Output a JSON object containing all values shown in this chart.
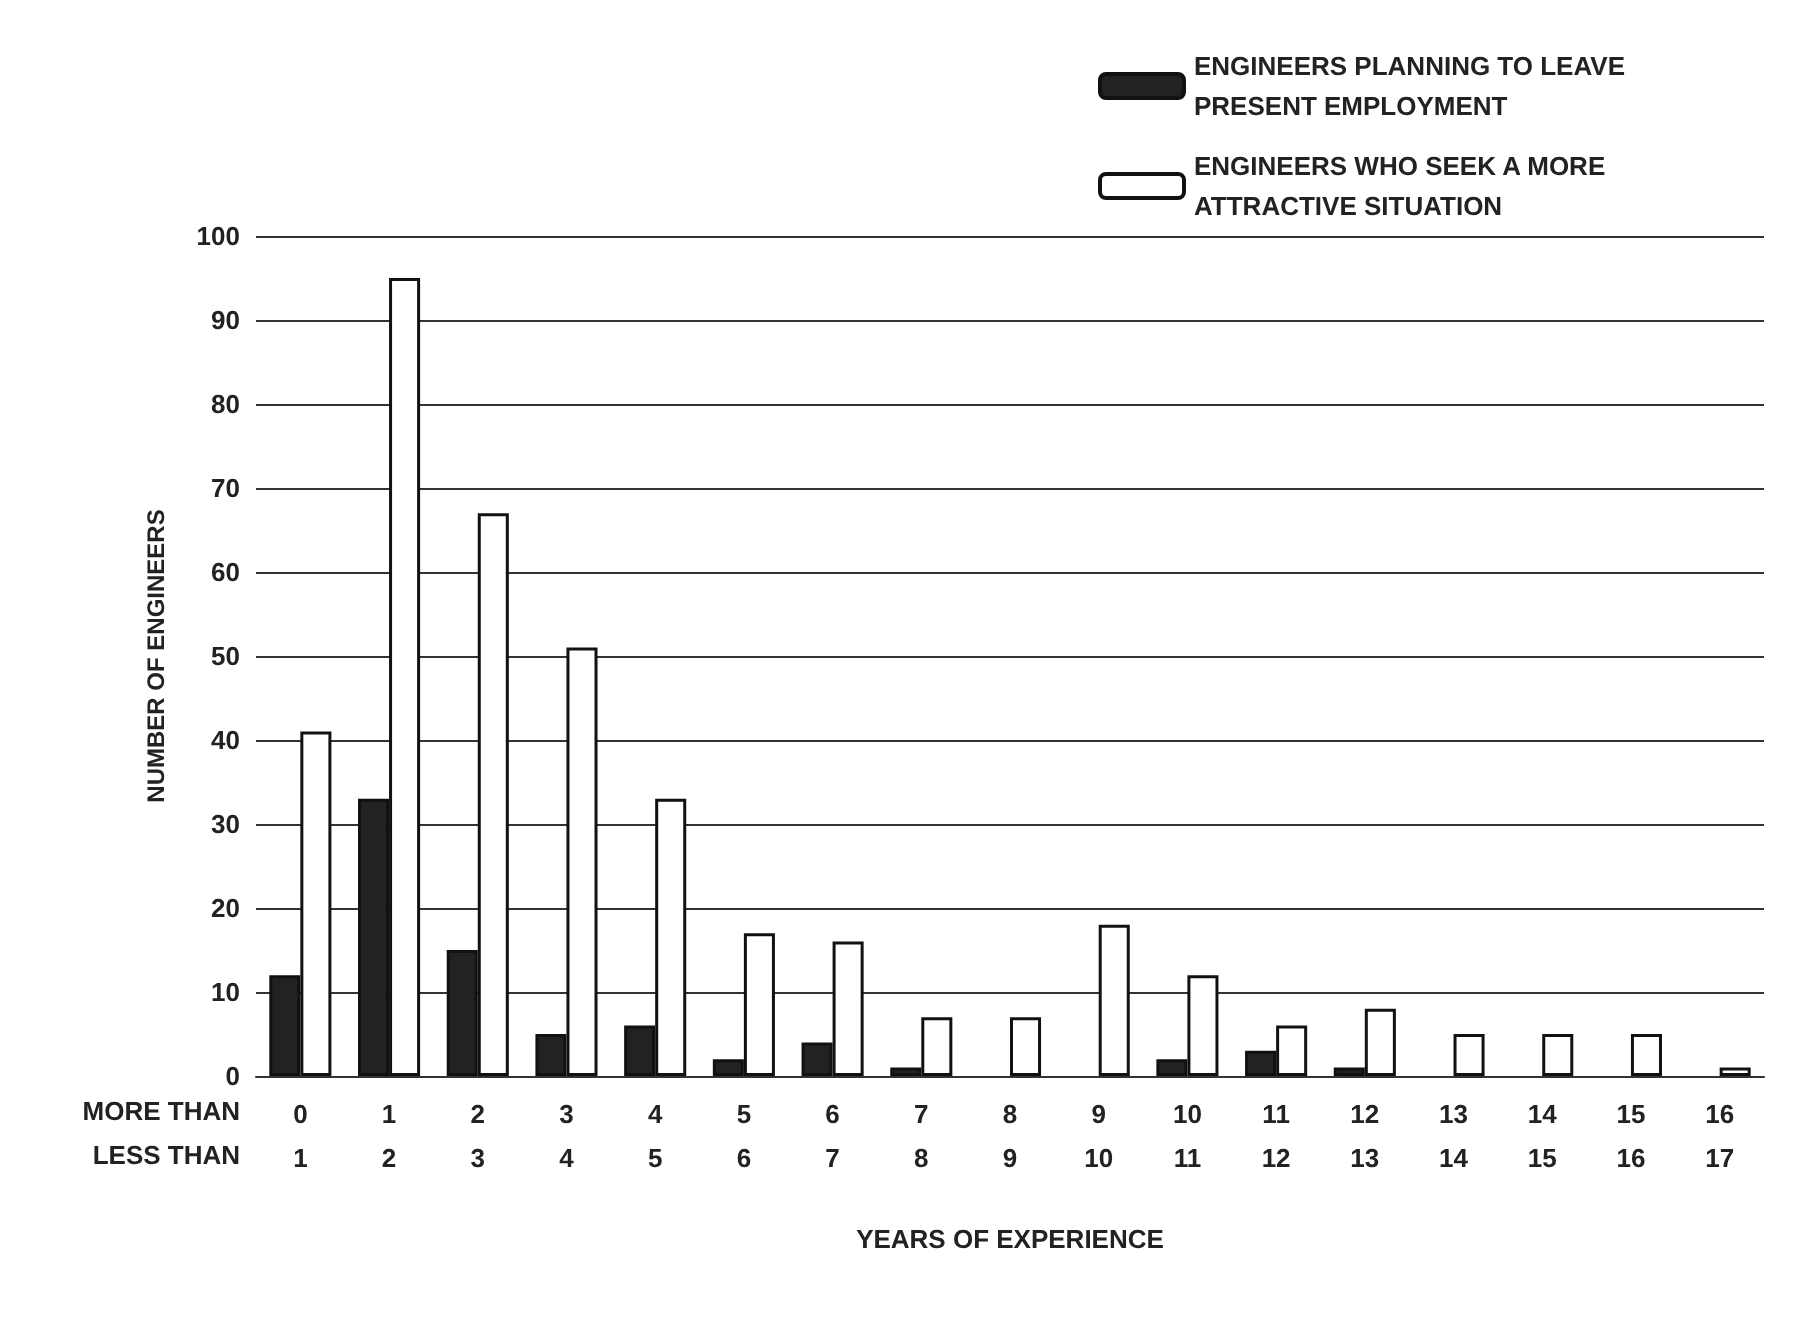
{
  "chart_data": {
    "type": "bar",
    "categories": [
      "0\n1",
      "1\n2",
      "2\n3",
      "3\n4",
      "4\n5",
      "5\n6",
      "6\n7",
      "7\n8",
      "8\n9",
      "9\n10",
      "10\n11",
      "11\n12",
      "12\n13",
      "13\n14",
      "14\n15",
      "15\n16",
      "16\n17"
    ],
    "series": [
      {
        "name": "ENGINEERS PLANNING TO LEAVE PRESENT EMPLOYMENT",
        "color": "#222222",
        "values": [
          12,
          33,
          15,
          5,
          6,
          2,
          4,
          1,
          0,
          0,
          2,
          3,
          1,
          0,
          0,
          0,
          0
        ]
      },
      {
        "name": "ENGINEERS WHO SEEK A MORE ATTRACTIVE SITUATION",
        "color": "#ffffff",
        "values": [
          41,
          95,
          67,
          51,
          33,
          17,
          16,
          7,
          7,
          18,
          12,
          6,
          8,
          5,
          5,
          5,
          1
        ]
      }
    ],
    "xlabel": "YEARS OF EXPERIENCE",
    "ylabel": "NUMBER OF ENGINEERS",
    "annotations": [
      "MORE THAN",
      "LESS THAN"
    ],
    "ylim": [
      0,
      100
    ],
    "yticks": [
      0,
      10,
      20,
      30,
      40,
      50,
      60,
      70,
      80,
      90,
      100
    ],
    "grid": "y",
    "legend": "top right"
  }
}
